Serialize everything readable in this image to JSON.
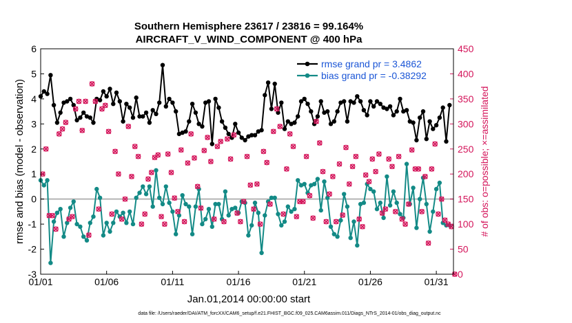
{
  "chart_data": {
    "type": "line",
    "title_line1": "Southern Hemisphere 23617 / 23816 = 99.164%",
    "title_line2": "AIRCRAFT_V_WIND_COMPONENT @ 400 hPa",
    "xlabel": "Jan.01,2014 00:00:00 start",
    "ylabel": "rmse and bias (model - observation)",
    "ylabel_right": "# of obs: o=possible; ×=assimilated",
    "xlim": [
      0,
      31.3
    ],
    "ylim": [
      -3,
      6
    ],
    "ylim_right": [
      0,
      450
    ],
    "x_ticks": [
      {
        "v": 0,
        "label": "01/01"
      },
      {
        "v": 5,
        "label": "01/06"
      },
      {
        "v": 10,
        "label": "01/11"
      },
      {
        "v": 15,
        "label": "01/16"
      },
      {
        "v": 20,
        "label": "01/21"
      },
      {
        "v": 25,
        "label": "01/26"
      },
      {
        "v": 30,
        "label": "01/31"
      }
    ],
    "y_ticks": [
      {
        "v": -3,
        "label": "-3"
      },
      {
        "v": -2,
        "label": "-2"
      },
      {
        "v": -1,
        "label": "-1"
      },
      {
        "v": 0,
        "label": "0"
      },
      {
        "v": 1,
        "label": "1"
      },
      {
        "v": 2,
        "label": "2"
      },
      {
        "v": 3,
        "label": "3"
      },
      {
        "v": 4,
        "label": "4"
      },
      {
        "v": 5,
        "label": "5"
      },
      {
        "v": 6,
        "label": "6"
      }
    ],
    "y_ticks_right": [
      {
        "v": 0,
        "label": "0"
      },
      {
        "v": 50,
        "label": "50"
      },
      {
        "v": 100,
        "label": "100"
      },
      {
        "v": 150,
        "label": "150"
      },
      {
        "v": 200,
        "label": "200"
      },
      {
        "v": 250,
        "label": "250"
      },
      {
        "v": 300,
        "label": "300"
      },
      {
        "v": 350,
        "label": "350"
      },
      {
        "v": 400,
        "label": "400"
      },
      {
        "v": 450,
        "label": "450"
      }
    ],
    "x_step": 0.25,
    "series": [
      {
        "name": "rmse grand pr = 3.4862",
        "color": "#000000",
        "values": [
          4.1,
          4.3,
          4.2,
          4.95,
          3.75,
          3.05,
          3.45,
          3.85,
          3.9,
          4.0,
          3.75,
          3.15,
          3.25,
          3.45,
          3.3,
          3.25,
          3.05,
          4.0,
          3.95,
          4.3,
          4.1,
          4.4,
          3.8,
          4.25,
          3.9,
          3.1,
          3.8,
          3.65,
          3.25,
          4.05,
          3.3,
          3.3,
          3.45,
          3.05,
          3.55,
          3.4,
          3.85,
          5.35,
          3.7,
          4.0,
          3.85,
          3.5,
          2.6,
          2.65,
          2.7,
          3.1,
          3.8,
          3.45,
          3.0,
          2.9,
          3.85,
          3.9,
          2.2,
          4.0,
          3.65,
          3.1,
          2.85,
          2.6,
          2.45,
          3.0,
          2.65,
          2.45,
          2.35,
          2.5,
          2.55,
          2.55,
          2.7,
          2.75,
          4.15,
          4.65,
          3.6,
          4.6,
          3.45,
          3.85,
          2.8,
          3.1,
          3.0,
          3.05,
          3.3,
          3.9,
          4.0,
          3.8,
          3.5,
          3.0,
          3.3,
          3.9,
          3.45,
          3.5,
          3.0,
          3.1,
          3.5,
          3.85,
          3.9,
          3.1,
          3.9,
          3.85,
          4.1,
          3.9,
          3.55,
          3.35,
          3.9,
          3.7,
          3.9,
          3.8,
          3.65,
          3.6,
          3.7,
          3.35,
          3.5,
          4.0,
          3.5,
          3.55,
          3.1,
          3.05,
          2.35,
          3.25,
          3.5,
          2.4,
          3.1,
          2.8,
          2.95,
          3.25,
          3.65,
          2.3,
          3.75
        ]
      },
      {
        "name": "bias grand pr = -0.38292",
        "color": "#138a86",
        "values": [
          0.75,
          0.55,
          0.75,
          -2.55,
          -0.9,
          -0.55,
          -0.4,
          -1.5,
          -0.95,
          -0.35,
          -0.1,
          -1.0,
          -1.1,
          -1.5,
          -1.65,
          -0.95,
          -0.7,
          0.4,
          0.05,
          -1.45,
          -0.95,
          -1.3,
          -0.95,
          -0.5,
          -0.7,
          -0.55,
          -0.95,
          -0.5,
          -1.0,
          0.05,
          0.25,
          0.5,
          0.2,
          0.5,
          -0.3,
          1.15,
          0.05,
          -0.2,
          0.5,
          -0.15,
          -0.5,
          -1.4,
          -0.65,
          0.15,
          -0.2,
          -0.3,
          -1.4,
          -0.3,
          0.4,
          -1.0,
          -0.8,
          -0.4,
          -1.1,
          -0.2,
          -0.2,
          -0.8,
          0.3,
          -0.65,
          -0.4,
          -0.35,
          -0.55,
          -0.1,
          -0.15,
          -1.45,
          -1.05,
          -0.15,
          -0.55,
          -2.15,
          -0.65,
          -0.1,
          0.05,
          0.05,
          -0.6,
          -1.05,
          -0.9,
          -0.3,
          -0.5,
          -0.4,
          0.75,
          0.55,
          0.6,
          0.25,
          0.55,
          0.6,
          0.8,
          -0.45,
          0.7,
          0.05,
          -1.1,
          -1.4,
          -1.5,
          -0.85,
          0.2,
          -0.3,
          -1.55,
          -0.9,
          -1.85,
          -0.2,
          -0.15,
          0.6,
          0.4,
          0.3,
          -0.4,
          -0.15,
          -0.75,
          0.9,
          -0.25,
          0.3,
          -0.15,
          -0.6,
          -0.75,
          1.4,
          -0.2,
          0.45,
          -1.15,
          0.0,
          0.85,
          -0.2,
          -1.3,
          -0.5,
          0.4,
          0.65,
          -0.95,
          -1.05,
          -1.05
        ]
      }
    ],
    "obs_assimilated": {
      "color": "#d4145a",
      "values": [
        200,
        250,
        117,
        117,
        90,
        280,
        290,
        303,
        110,
        115,
        330,
        345,
        287,
        345,
        78,
        380,
        345,
        130,
        330,
        337,
        285,
        120,
        245,
        200,
        110,
        150,
        295,
        195,
        255,
        235,
        100,
        120,
        190,
        203,
        233,
        238,
        115,
        100,
        240,
        203,
        152,
        125,
        248,
        105,
        222,
        280,
        232,
        175,
        132,
        247,
        273,
        225,
        110,
        255,
        265,
        105,
        270,
        230,
        278,
        122,
        105,
        145,
        235,
        178,
        130,
        180,
        100,
        245,
        223,
        140,
        285,
        330,
        295,
        120,
        210,
        280,
        255,
        115,
        145,
        145,
        235,
        157,
        112,
        305,
        262,
        205,
        105,
        160,
        195,
        105,
        220,
        118,
        253,
        180,
        215,
        235,
        110,
        95,
        198,
        185,
        230,
        205,
        240,
        122,
        130,
        230,
        215,
        125,
        235,
        110,
        100,
        140,
        248,
        210,
        210,
        125,
        195,
        62,
        210,
        260,
        120,
        150,
        108,
        100,
        95,
        0
      ],
      "x_start": 0.15,
      "x_step": 0.25
    }
  },
  "legend": {
    "rmse_label": "rmse grand pr = 3.4862",
    "bias_label": "bias grand pr = -0.38292"
  },
  "footer": "data file: /Users/raeder/DAI/ATM_forcXX/CAM6_setup/f.e21.FHIST_BGC.f09_025.CAM6assim.011/Diags_NTrS_2014-01/obs_diag_output.nc"
}
